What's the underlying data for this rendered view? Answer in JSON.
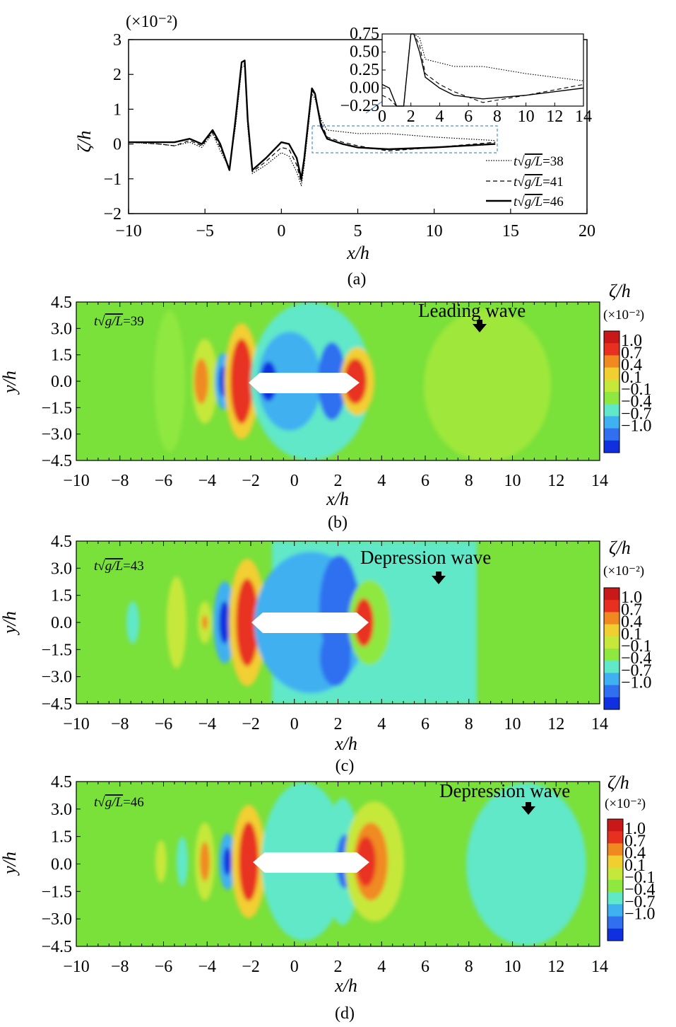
{
  "chart_data": [
    {
      "panel": "a",
      "type": "line",
      "caption": "(a)",
      "xlabel": "x/h",
      "ylabel": "ζ/h",
      "y_scale_label": "(×10⁻²)",
      "xlim": [
        -10,
        20
      ],
      "ylim": [
        -2,
        3
      ],
      "xticks": [
        "−10",
        "−5",
        "0",
        "5",
        "10",
        "15",
        "20"
      ],
      "yticks": [
        "3",
        "2",
        "1",
        "0",
        "−1",
        "−2"
      ],
      "legend_position": "bottom-right",
      "series": [
        {
          "name": "t√g/L=38",
          "t_value": "=38",
          "style": "dotted",
          "x": [
            -10,
            -8,
            -7,
            -6,
            -5.2,
            -4.5,
            -4,
            -3.4,
            -3,
            -2.6,
            -2.4,
            -2.2,
            -1.9,
            -1,
            0,
            0.5,
            1,
            1.3,
            1.5,
            2,
            2.2,
            2.6,
            3,
            4,
            5,
            7,
            10,
            14
          ],
          "y": [
            0.05,
            0.0,
            -0.05,
            0.05,
            -0.1,
            0.3,
            -0.2,
            -0.7,
            0.5,
            2.2,
            2.25,
            0.5,
            -0.85,
            -0.6,
            -0.25,
            -0.35,
            -0.8,
            -1.2,
            -0.6,
            1.45,
            1.3,
            0.7,
            0.4,
            0.35,
            0.3,
            0.3,
            0.2,
            0.1
          ]
        },
        {
          "name": "t√g/L=41",
          "t_value": "=41",
          "style": "dashed",
          "x": [
            -10,
            -8,
            -7,
            -6,
            -5.2,
            -4.5,
            -4,
            -3.4,
            -3,
            -2.6,
            -2.4,
            -2.2,
            -1.9,
            -1,
            0,
            0.5,
            1,
            1.3,
            1.5,
            2,
            2.2,
            2.6,
            3,
            4,
            5,
            7,
            10,
            14
          ],
          "y": [
            0.05,
            0.0,
            -0.05,
            0.1,
            -0.05,
            0.35,
            -0.1,
            -0.7,
            0.6,
            2.3,
            2.3,
            0.6,
            -0.8,
            -0.5,
            -0.1,
            -0.15,
            -0.6,
            -1.1,
            -0.5,
            1.55,
            1.4,
            0.6,
            0.2,
            0.05,
            -0.05,
            -0.2,
            -0.1,
            0.05
          ]
        },
        {
          "name": "t√g/L=46",
          "t_value": "=46",
          "style": "solid",
          "x": [
            -10,
            -8,
            -7,
            -6,
            -5.2,
            -4.5,
            -4,
            -3.4,
            -3,
            -2.6,
            -2.4,
            -2.2,
            -1.9,
            -1,
            0,
            0.5,
            1,
            1.3,
            1.5,
            2,
            2.2,
            2.6,
            3,
            4,
            5,
            7,
            10,
            14
          ],
          "y": [
            0.05,
            0.05,
            0.05,
            0.15,
            0.0,
            0.4,
            0.0,
            -0.75,
            0.7,
            2.35,
            2.4,
            0.7,
            -0.75,
            -0.4,
            0.05,
            0.0,
            -0.4,
            -1.0,
            -0.4,
            1.6,
            1.45,
            0.5,
            0.15,
            0.0,
            -0.1,
            -0.15,
            -0.1,
            0.0
          ]
        }
      ],
      "inset": {
        "xlim": [
          0,
          14
        ],
        "ylim": [
          -0.25,
          0.75
        ],
        "xticks": [
          "0",
          "2",
          "4",
          "6",
          "8",
          "10",
          "12",
          "14"
        ],
        "yticks": [
          "0.75",
          "0.50",
          "0.25",
          "0.00",
          "−0.25"
        ]
      }
    },
    {
      "panel": "b",
      "type": "heatmap",
      "caption": "(b)",
      "time_label": "=39",
      "annotation": "Leading wave",
      "xlabel": "x/h",
      "ylabel": "y/h",
      "xlim": [
        -10,
        14
      ],
      "ylim": [
        -4.5,
        4.5
      ],
      "xticks": [
        "−10",
        "−8",
        "−6",
        "−4",
        "−2",
        "0",
        "2",
        "4",
        "6",
        "8",
        "10",
        "12",
        "14"
      ],
      "yticks": [
        "4.5",
        "3.0",
        "1.5",
        "0.0",
        "−1.5",
        "−3.0",
        "−4.5"
      ],
      "colorbar": {
        "title": "ζ/h",
        "scale_label": "(×10⁻²)",
        "ticks": [
          "1.0",
          "0.7",
          "0.4",
          "0.1",
          "−0.1",
          "−0.4",
          "−0.7",
          "−1.0"
        ]
      }
    },
    {
      "panel": "c",
      "type": "heatmap",
      "caption": "(c)",
      "time_label": "=43",
      "annotation": "Depression wave",
      "xlabel": "x/h",
      "ylabel": "y/h",
      "xlim": [
        -10,
        14
      ],
      "ylim": [
        -4.5,
        4.5
      ],
      "xticks": [
        "−10",
        "−8",
        "−6",
        "−4",
        "−2",
        "0",
        "2",
        "4",
        "6",
        "8",
        "10",
        "12",
        "14"
      ],
      "yticks": [
        "4.5",
        "3.0",
        "1.5",
        "0.0",
        "−1.5",
        "−3.0",
        "−4.5"
      ],
      "colorbar": {
        "title": "ζ/h",
        "scale_label": "(×10⁻²)",
        "ticks": [
          "1.0",
          "0.7",
          "0.4",
          "0.1",
          "−0.1",
          "−0.4",
          "−0.7",
          "−1.0"
        ]
      }
    },
    {
      "panel": "d",
      "type": "heatmap",
      "caption": "(d)",
      "time_label": "=46",
      "annotation": "Depression wave",
      "xlabel": "x/h",
      "ylabel": "y/h",
      "xlim": [
        -10,
        14
      ],
      "ylim": [
        -4.5,
        4.5
      ],
      "xticks": [
        "−10",
        "−8",
        "−6",
        "−4",
        "−2",
        "0",
        "2",
        "4",
        "6",
        "8",
        "10",
        "12",
        "14"
      ],
      "yticks": [
        "4.5",
        "3.0",
        "1.5",
        "0.0",
        "−1.5",
        "−3.0",
        "−4.5"
      ],
      "colorbar": {
        "title": "ζ/h",
        "scale_label": "(×10⁻²)",
        "ticks": [
          "1.0",
          "0.7",
          "0.4",
          "0.1",
          "−0.1",
          "−0.4",
          "−0.7",
          "−1.0"
        ]
      }
    }
  ],
  "colors": {
    "colormap": [
      "#1030e0",
      "#2f6ff0",
      "#3fb0f0",
      "#60e8c8",
      "#8ee840",
      "#c6e83a",
      "#f2cf30",
      "#f08a20",
      "#e83020",
      "#c81818"
    ],
    "background": "#7ae03a",
    "inset_box": "#4d8fd8"
  }
}
